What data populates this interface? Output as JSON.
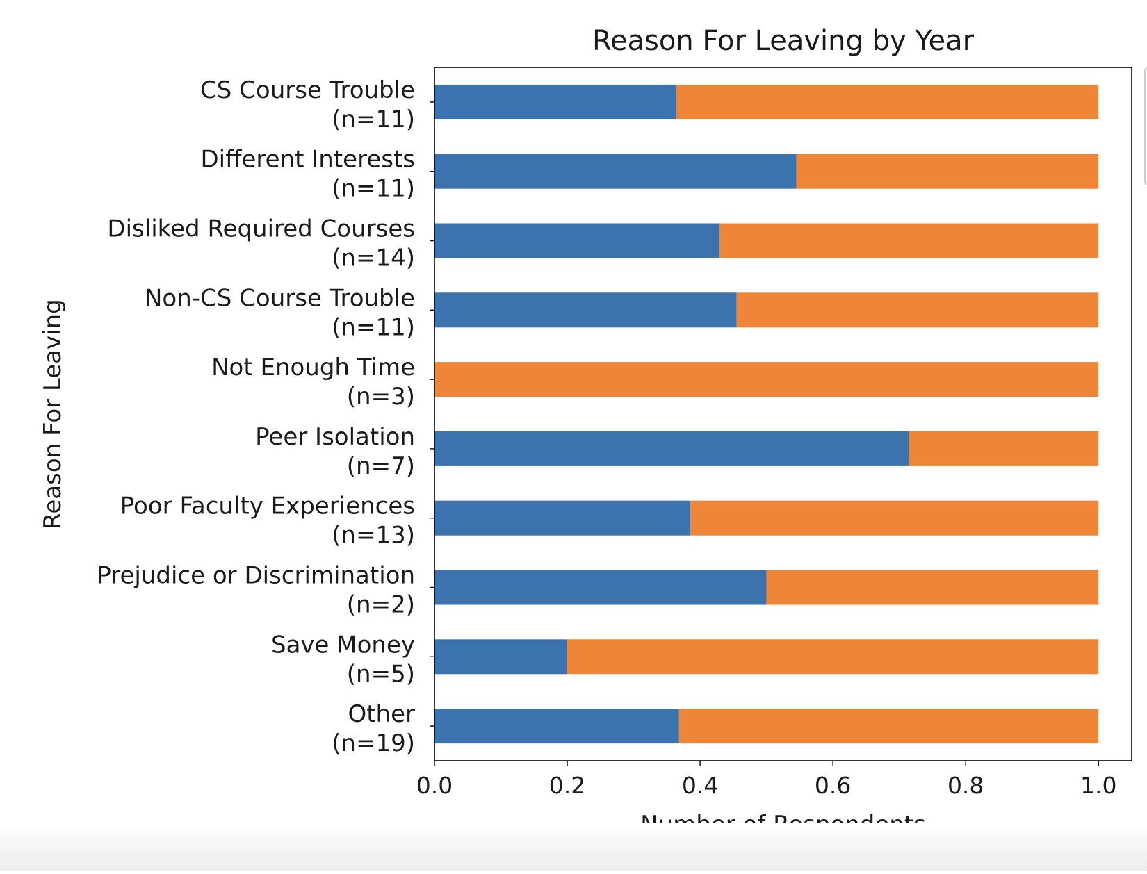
{
  "chart_data": {
    "type": "bar",
    "orientation": "horizontal",
    "stacked": true,
    "title": "Reason For Leaving by Year",
    "xlabel": "Number of Respondents",
    "ylabel": "Reason For Leaving",
    "xlim": [
      0,
      1.05
    ],
    "xticks": [
      "0.0",
      "0.2",
      "0.4",
      "0.6",
      "0.8",
      "1.0"
    ],
    "grid": false,
    "legend": "right (cut off)",
    "categories": [
      {
        "label": "CS Course Trouble",
        "n": "(n=11)"
      },
      {
        "label": "Different Interests",
        "n": "(n=11)"
      },
      {
        "label": "Disliked Required Courses",
        "n": "(n=14)"
      },
      {
        "label": "Non-CS Course Trouble",
        "n": "(n=11)"
      },
      {
        "label": "Not Enough Time",
        "n": "(n=3)"
      },
      {
        "label": "Peer Isolation",
        "n": "(n=7)"
      },
      {
        "label": "Poor Faculty Experiences",
        "n": "(n=13)"
      },
      {
        "label": "Prejudice or Discrimination",
        "n": "(n=2)"
      },
      {
        "label": "Save Money",
        "n": "(n=5)"
      },
      {
        "label": "Other",
        "n": "(n=19)"
      }
    ],
    "series": [
      {
        "color": "#3a73ad",
        "values": [
          0.364,
          0.545,
          0.429,
          0.455,
          0.0,
          0.714,
          0.385,
          0.5,
          0.2,
          0.368
        ]
      },
      {
        "color": "#ee8537",
        "values": [
          0.636,
          0.455,
          0.571,
          0.545,
          1.0,
          0.286,
          0.615,
          0.5,
          0.8,
          0.632
        ]
      }
    ]
  }
}
